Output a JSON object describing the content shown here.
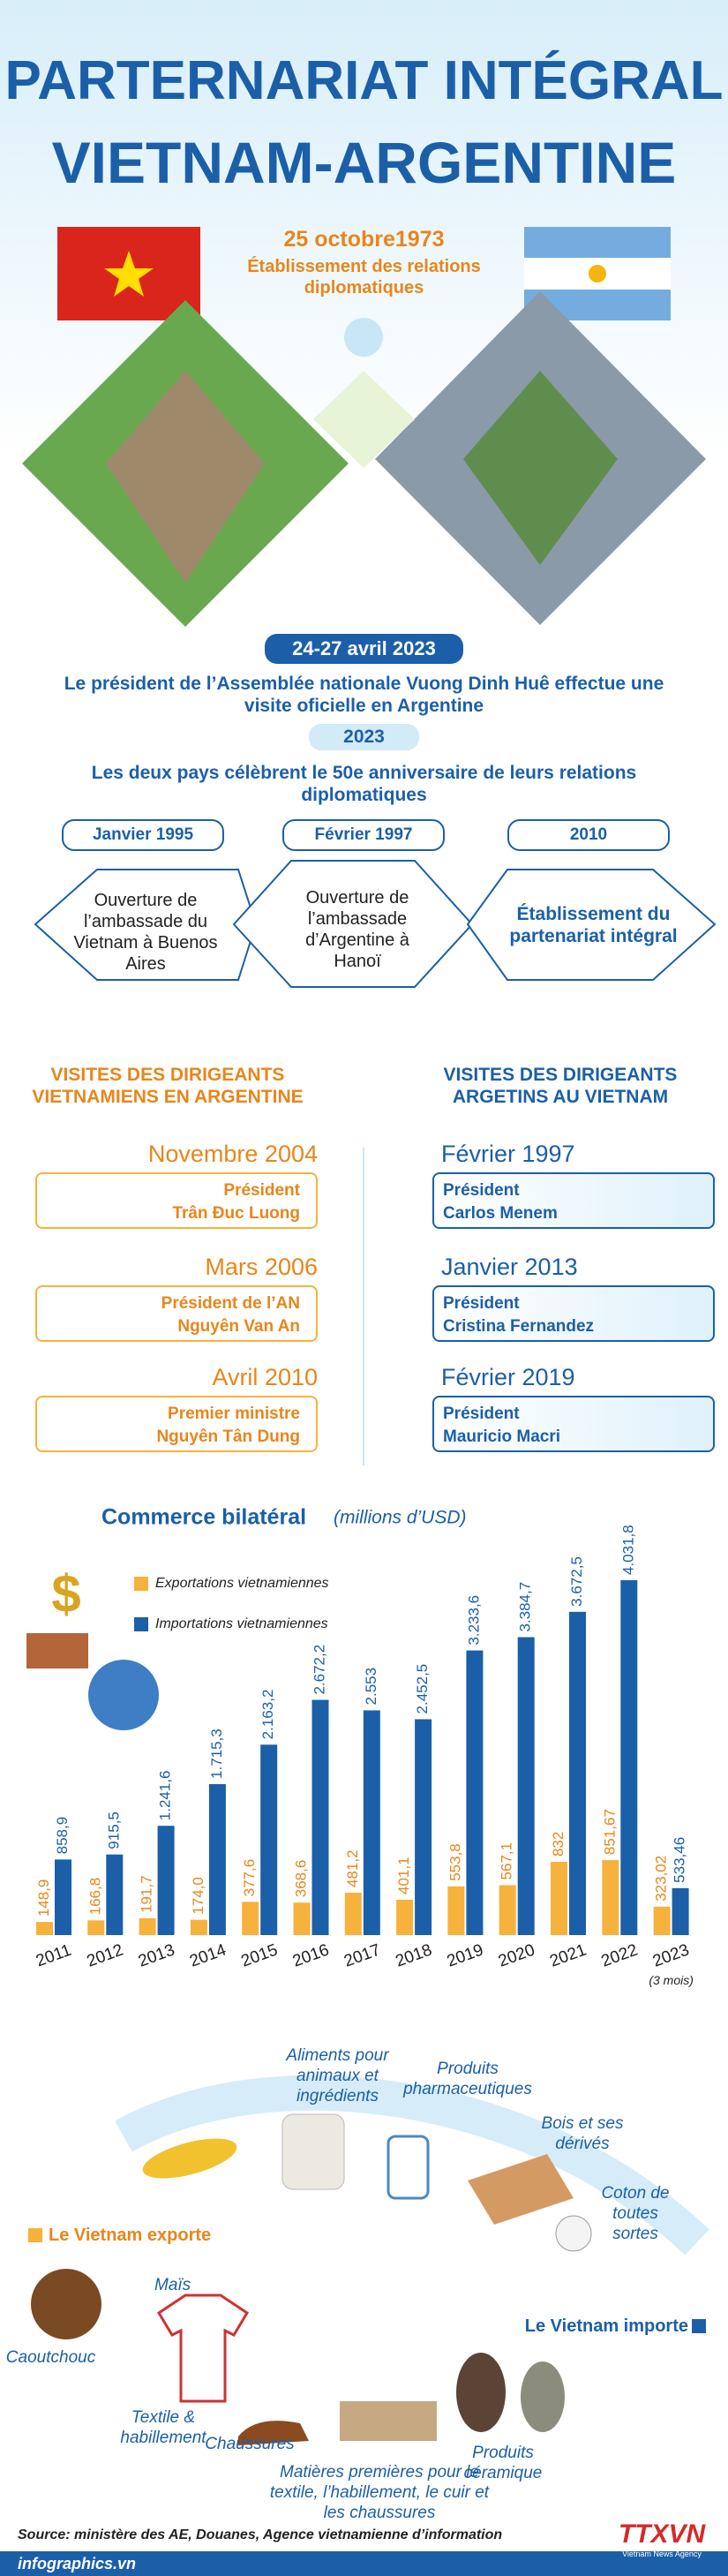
{
  "header": {
    "title_line1": "PARTERNARIAT INTÉGRAL",
    "title_line2": "VIETNAM-ARGENTINE"
  },
  "establishment": {
    "date": "25 octobre1973",
    "text": "Établissement des relations diplomatiques"
  },
  "visit_2023": {
    "date": "24-27 avril 2023",
    "text": "Le président de l’Assemblée nationale Vuong Dinh Huê effectue une visite oficielle en Argentine"
  },
  "anniversary": {
    "year": "2023",
    "text": "Les deux pays célèbrent le 50e anniversaire de leurs relations diplomatiques"
  },
  "milestones": [
    {
      "date": "Janvier 1995",
      "text": "Ouverture de l’ambassade du Vietnam à Buenos Aires"
    },
    {
      "date": "Février 1997",
      "text": "Ouverture de l’ambassade d’Argentine à Hanoï"
    },
    {
      "date": "2010",
      "text": "Établissement du partenariat intégral"
    }
  ],
  "visits": {
    "vietnam_heading": "VISITES DES DIRIGEANTS VIETNAMIENS EN ARGENTINE",
    "argentina_heading": "VISITES DES DIRIGEANTS ARGETINS AU VIETNAM",
    "vietnam": [
      {
        "date": "Novembre 2004",
        "role": "Président",
        "name": "Trân Đuc Luong"
      },
      {
        "date": "Mars 2006",
        "role": "Président de l’AN",
        "name": "Nguyên Van An"
      },
      {
        "date": "Avril 2010",
        "role": "Premier ministre",
        "name": "Nguyên Tân Dung"
      }
    ],
    "argentina": [
      {
        "date": "Février 1997",
        "role": "Président",
        "name": "Carlos Menem"
      },
      {
        "date": "Janvier 2013",
        "role": "Président",
        "name": "Cristina Fernandez"
      },
      {
        "date": "Février 2019",
        "role": "Président",
        "name": "Mauricio Macri"
      }
    ]
  },
  "chart_data": {
    "type": "bar",
    "title": "Commerce bilatéral",
    "subtitle": "(millions d’USD)",
    "categories": [
      "2011",
      "2012",
      "2013",
      "2014",
      "2015",
      "2016",
      "2017",
      "2018",
      "2019",
      "2020",
      "2021",
      "2022",
      "2023"
    ],
    "annotation": "(3 mois)",
    "series": [
      {
        "name": "Exportations vietnamiennes",
        "color": "#f6b23c",
        "values": [
          148.9,
          166.8,
          191.7,
          174.0,
          377.6,
          368.6,
          481.2,
          401.1,
          553.8,
          567.1,
          832,
          851.67,
          323.02
        ],
        "value_labels": [
          "148,9",
          "166,8",
          "191,7",
          "174,0",
          "377,6",
          "368,6",
          "481,2",
          "401,1",
          "553,8",
          "567,1",
          "832",
          "851,67",
          "323,02"
        ]
      },
      {
        "name": "Importations vietnamiennes",
        "color": "#1b5fa9",
        "values": [
          858.9,
          915.5,
          1241.6,
          1715.3,
          2163.2,
          2672.2,
          2553,
          2452.5,
          3233.6,
          3384.7,
          3672.5,
          4031.8,
          533.46
        ],
        "value_labels": [
          "858,9",
          "915,5",
          "1.241,6",
          "1.715,3",
          "2.163,2",
          "2.672,2",
          "2.553",
          "2.452,5",
          "3.233,6",
          "3.384,7",
          "3.672,5",
          "4.031,8",
          "533,46"
        ]
      }
    ]
  },
  "trade": {
    "export_heading": "Le Vietnam exporte",
    "import_heading": "Le Vietnam importe",
    "exports": [
      "Maïs",
      "Caoutchouc",
      "Textile & habillement",
      "Chaussures"
    ],
    "imports": [
      "Aliments pour animaux et ingrédients",
      "Produits pharmaceutiques",
      "Bois et ses dérivés",
      "Coton de toutes sortes",
      "Produits céramique",
      "Matières premières pour le textile, l’habillement, le cuir et les chaussures"
    ]
  },
  "footer": {
    "source": "Source: ministère des AE, Douanes, Agence vietnamienne d’information",
    "website": "infographics.vn",
    "logo": "TTXVN",
    "logo_sub": "Vietnam News Agency"
  }
}
